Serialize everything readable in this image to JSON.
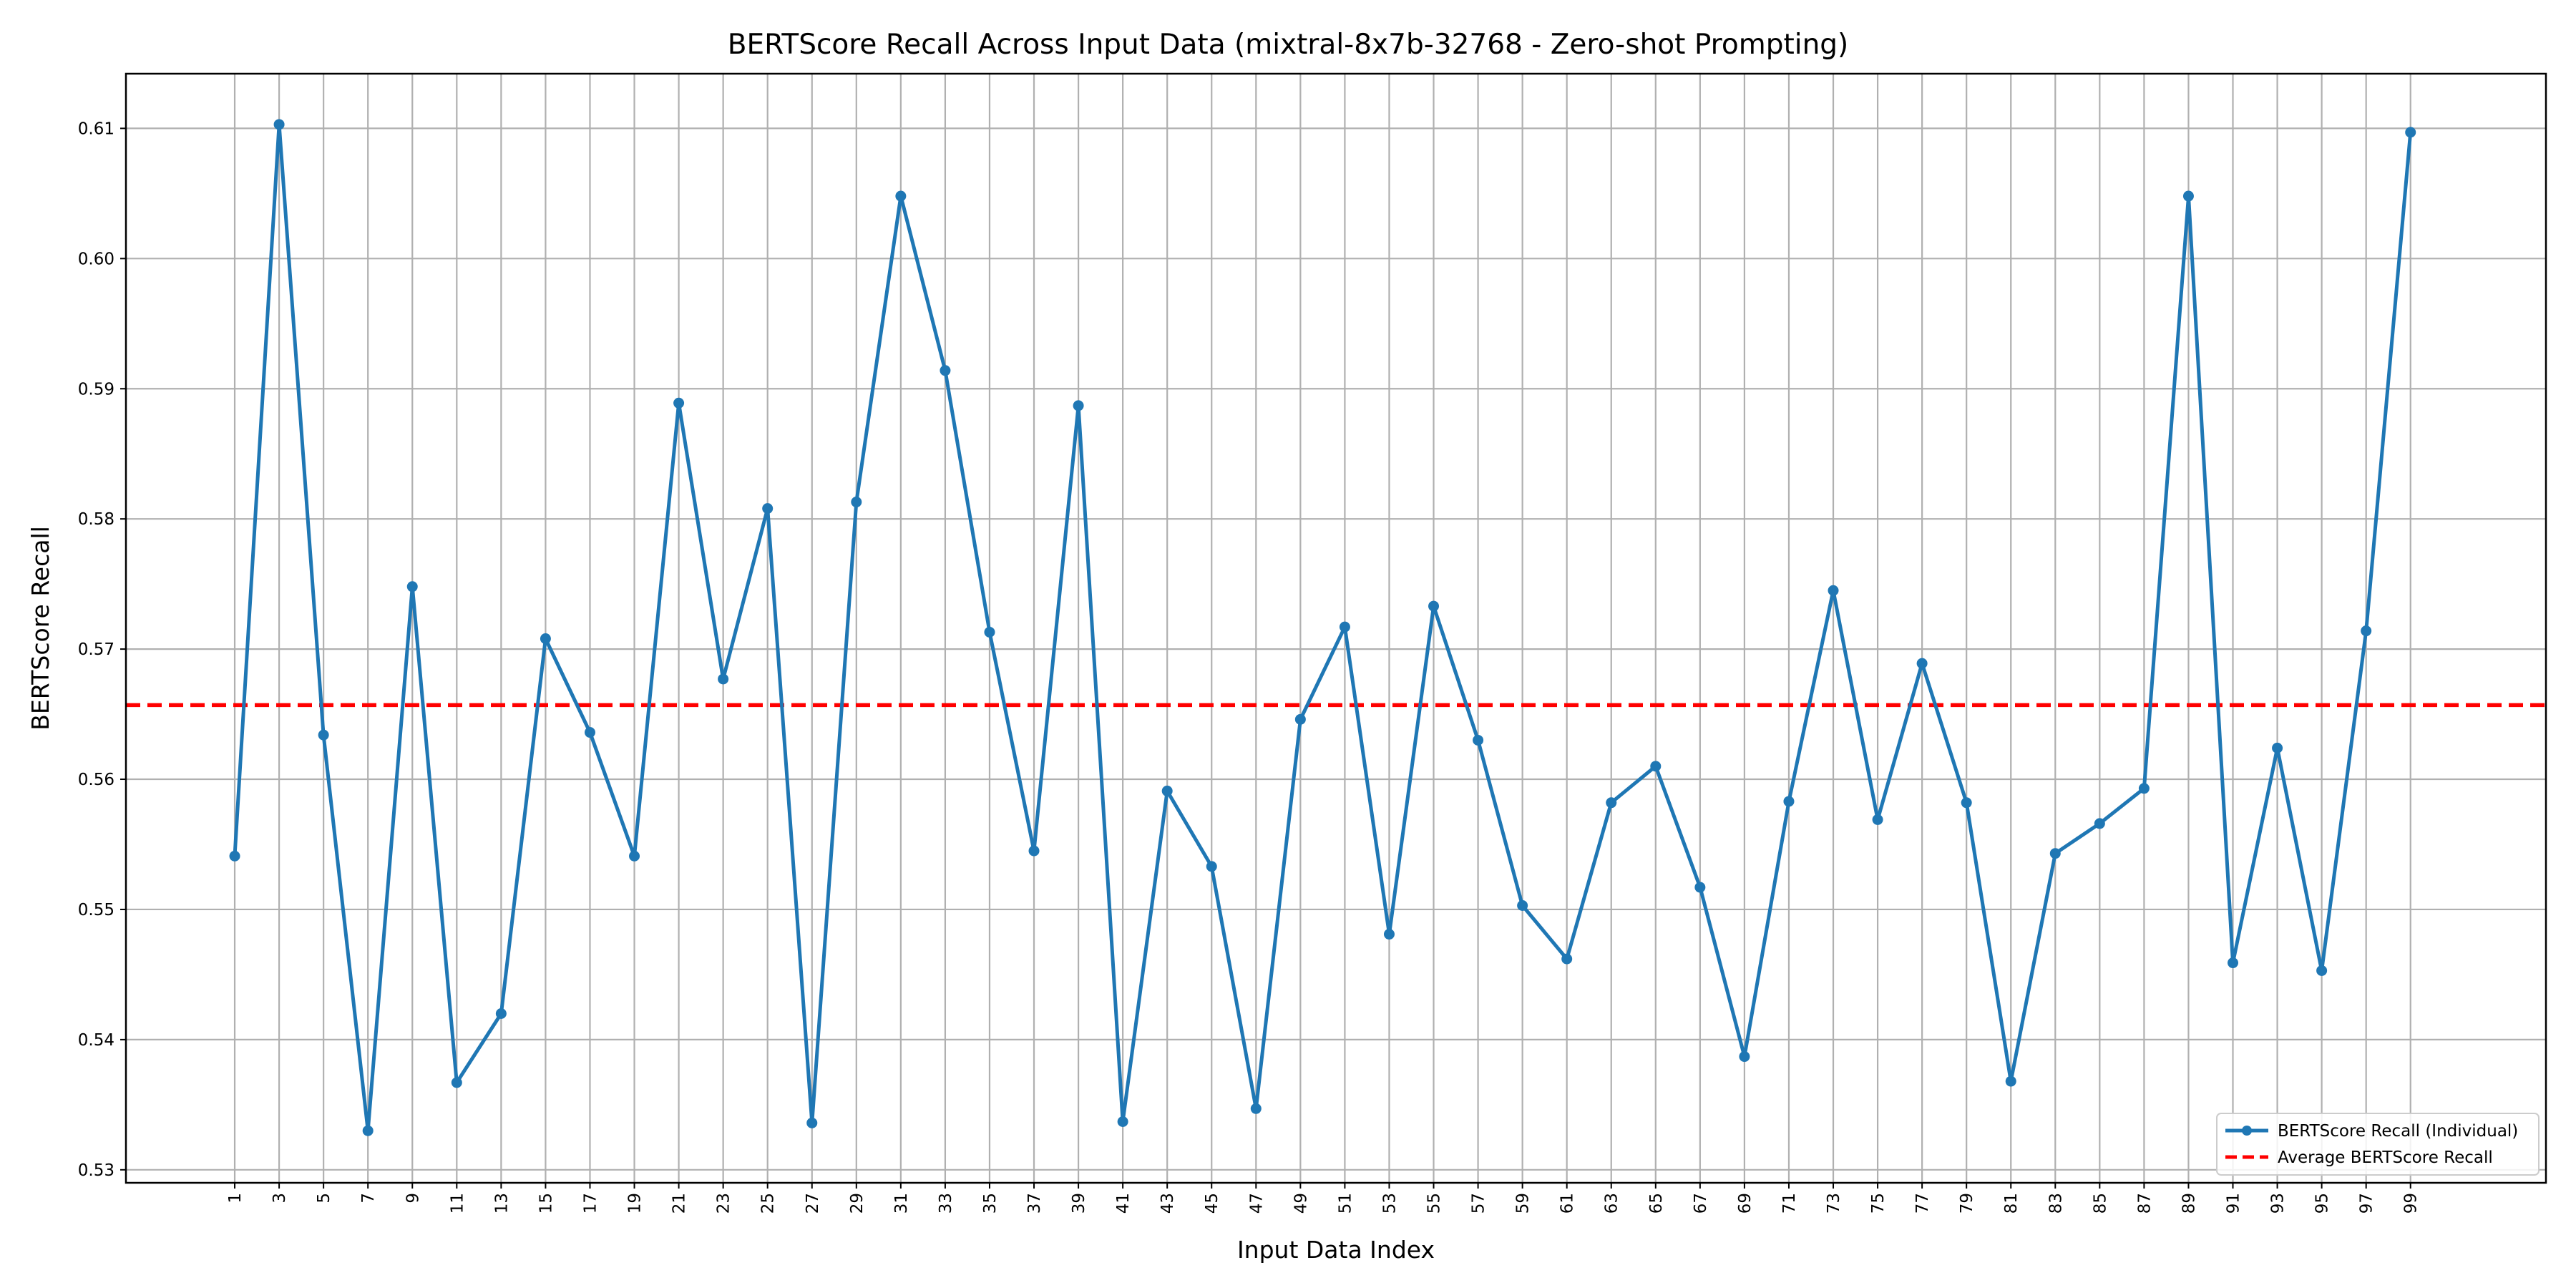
{
  "chart_data": {
    "type": "line",
    "title": "BERTScore Recall Across Input Data (mixtral-8x7b-32768 - Zero-shot Prompting)",
    "xlabel": "Input Data Index",
    "ylabel": "BERTScore Recall",
    "x": [
      1,
      3,
      5,
      7,
      9,
      11,
      13,
      15,
      17,
      19,
      21,
      23,
      25,
      27,
      29,
      31,
      33,
      35,
      37,
      39,
      41,
      43,
      45,
      47,
      49,
      51,
      53,
      55,
      57,
      59,
      61,
      63,
      65,
      67,
      69,
      71,
      73,
      75,
      77,
      79,
      81,
      83,
      85,
      87,
      89,
      91,
      93,
      95,
      97,
      99
    ],
    "xtick_labels": [
      "1",
      "3",
      "5",
      "7",
      "9",
      "11",
      "13",
      "15",
      "17",
      "19",
      "21",
      "23",
      "25",
      "27",
      "29",
      "31",
      "33",
      "35",
      "37",
      "39",
      "41",
      "43",
      "45",
      "47",
      "49",
      "51",
      "53",
      "55",
      "57",
      "59",
      "61",
      "63",
      "65",
      "67",
      "69",
      "71",
      "73",
      "75",
      "77",
      "79",
      "81",
      "83",
      "85",
      "87",
      "89",
      "91",
      "93",
      "95",
      "97",
      "99"
    ],
    "ytick_labels": [
      "0.53",
      "0.54",
      "0.55",
      "0.56",
      "0.57",
      "0.58",
      "0.59",
      "0.60",
      "0.61"
    ],
    "yticks": [
      0.53,
      0.54,
      0.55,
      0.56,
      0.57,
      0.58,
      0.59,
      0.6,
      0.61
    ],
    "xlim": [
      -3.9,
      105.1
    ],
    "ylim": [
      0.529,
      0.6142
    ],
    "grid": true,
    "legend_position": "lower-right",
    "series": [
      {
        "name": "BERTScore Recall (Individual)",
        "color": "#1f77b4",
        "marker": "circle",
        "values": [
          0.5541,
          0.6103,
          0.5634,
          0.533,
          0.5748,
          0.5367,
          0.542,
          0.5708,
          0.5636,
          0.5541,
          0.5889,
          0.5677,
          0.5808,
          0.5336,
          0.5813,
          0.6048,
          0.5914,
          0.5713,
          0.5545,
          0.5887,
          0.5337,
          0.5591,
          0.5533,
          0.5347,
          0.5646,
          0.5717,
          0.5481,
          0.5733,
          0.563,
          0.5503,
          0.5462,
          0.5582,
          0.561,
          0.5517,
          0.5387,
          0.5583,
          0.5745,
          0.5569,
          0.5689,
          0.5582,
          0.5368,
          0.5543,
          0.5566,
          0.5593,
          0.6048,
          0.5459,
          0.5624,
          0.5453,
          0.5714,
          0.6097
        ]
      }
    ],
    "average": {
      "name": "Average BERTScore Recall",
      "color": "#ff0000",
      "value": 0.5657
    }
  }
}
